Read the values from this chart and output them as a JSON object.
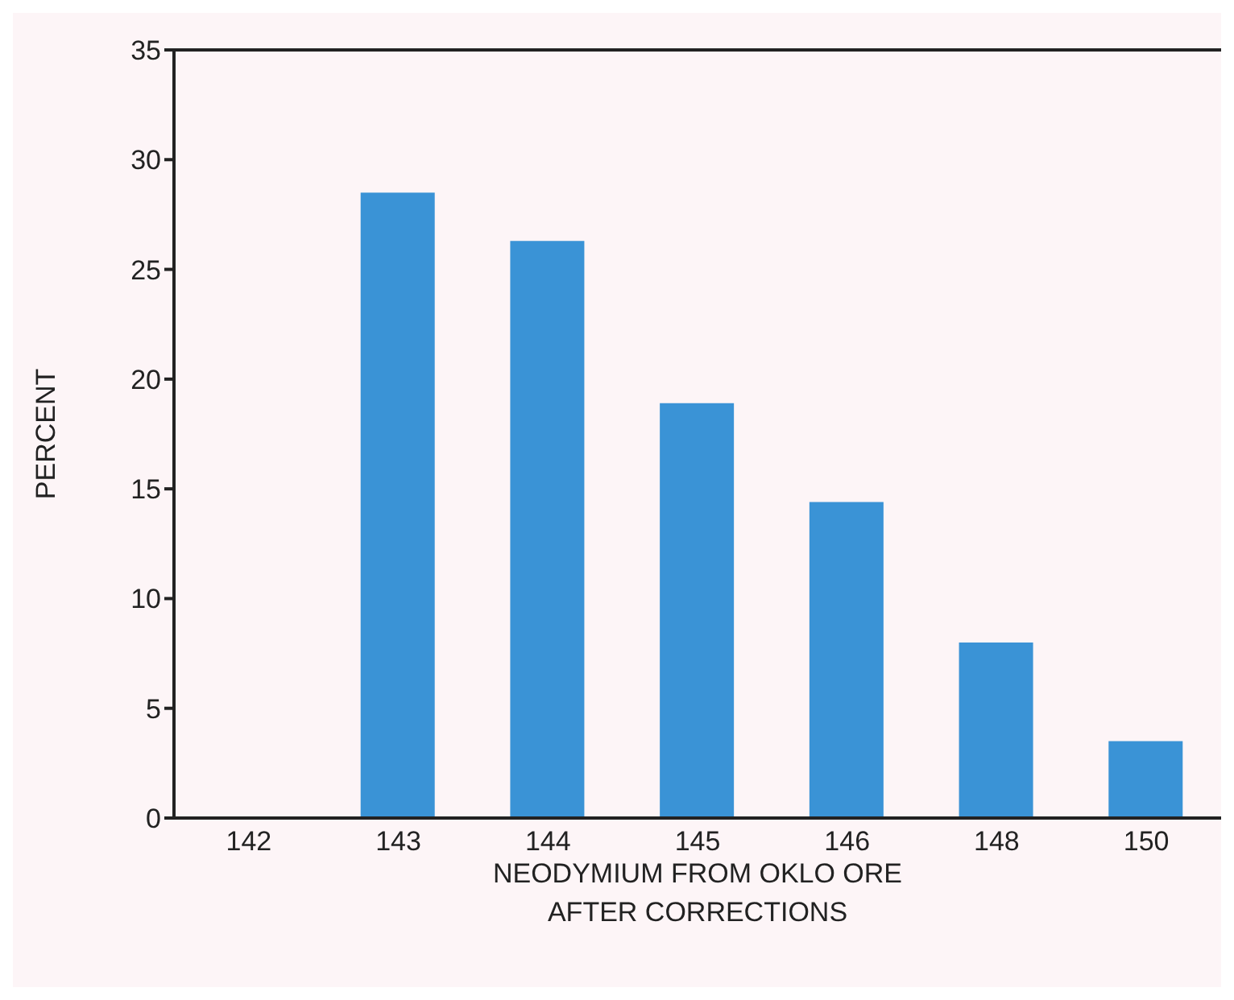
{
  "chart_data": {
    "type": "bar",
    "xlabel": "NEODYMIUM FROM OKLO ORE\nAFTER CORRECTIONS",
    "ylabel": "PERCENT",
    "categories": [
      "142",
      "143",
      "144",
      "145",
      "146",
      "148",
      "150"
    ],
    "values": [
      null,
      28.5,
      26.3,
      18.9,
      14.4,
      8.0,
      3.5
    ],
    "color": "#3a93d6",
    "ylim": [
      0,
      35
    ],
    "yticks": [
      0,
      5,
      10,
      15,
      20,
      25,
      30,
      35
    ],
    "grid": false
  }
}
